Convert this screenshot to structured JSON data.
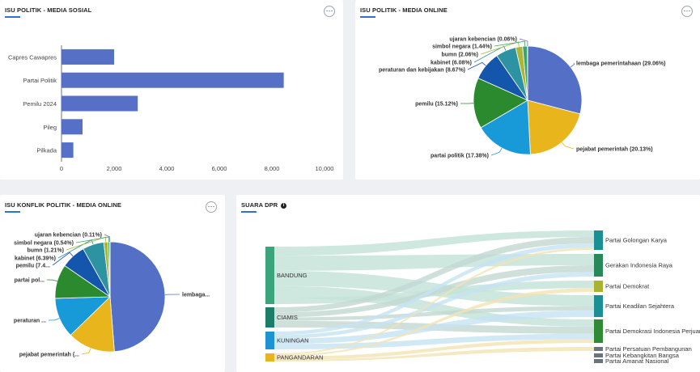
{
  "panels": {
    "sosial": {
      "title": "ISU POLITIK - MEDIA SOSIAL",
      "more": "⋯"
    },
    "online": {
      "title": "ISU POLITIK - MEDIA ONLINE",
      "more": "⋯"
    },
    "konflik": {
      "title": "ISU KONFLIK POLITIK - MEDIA ONLINE",
      "more": "⋯"
    },
    "dpr": {
      "title": "SUARA DPR",
      "info": "i"
    }
  },
  "chart_data": [
    {
      "type": "bar",
      "orientation": "horizontal",
      "title": "ISU POLITIK - MEDIA SOSIAL",
      "categories": [
        "Capres Cawapres",
        "Partai Politik",
        "Pemilu 2024",
        "Pileg",
        "Pilkada"
      ],
      "values": [
        2000,
        8450,
        2900,
        800,
        450
      ],
      "xlim": [
        0,
        10000
      ],
      "xticks": [
        "0",
        "2,000",
        "4,000",
        "6,000",
        "8,000",
        "10,000"
      ],
      "grid": false,
      "color": "#5670c8"
    },
    {
      "type": "pie",
      "title": "ISU POLITIK - MEDIA ONLINE",
      "slices": [
        {
          "label": "lembaga pemerintahaan (29.06%)",
          "value": 29.06,
          "color": "#5470c6"
        },
        {
          "label": "pejabat pemerintah (20.13%)",
          "value": 20.13,
          "color": "#e8b51c"
        },
        {
          "label": "partai politik (17.38%)",
          "value": 17.38,
          "color": "#189ad8"
        },
        {
          "label": "pemilu (15.12%)",
          "value": 15.12,
          "color": "#2b8a2e"
        },
        {
          "label": "peraturan dan kebijakan (8.67%)",
          "value": 8.67,
          "color": "#1556ad"
        },
        {
          "label": "kabinet (6.08%)",
          "value": 6.08,
          "color": "#2d93a2"
        },
        {
          "label": "bumn (2.06%)",
          "value": 2.06,
          "color": "#acb534"
        },
        {
          "label": "simbol negara (1.44%)",
          "value": 1.44,
          "color": "#3ca46c"
        },
        {
          "label": "ujaran kebencian (0.06%)",
          "value": 0.06,
          "color": "#8a5cc2"
        }
      ]
    },
    {
      "type": "pie",
      "title": "ISU KONFLIK POLITIK - MEDIA ONLINE",
      "slices": [
        {
          "label": "lembaga...",
          "value": 49.5,
          "color": "#5470c6"
        },
        {
          "label": "pejabat pemerintah (...",
          "value": 14.2,
          "color": "#e8b51c"
        },
        {
          "label": "peraturan ...",
          "value": 12.0,
          "color": "#189ad8"
        },
        {
          "label": "partai pol...",
          "value": 10.2,
          "color": "#2b8a2e"
        },
        {
          "label": "pemilu (7.4...",
          "value": 7.4,
          "color": "#1556ad"
        },
        {
          "label": "kabinet (6.39%)",
          "value": 6.39,
          "color": "#2d93a2"
        },
        {
          "label": "bumn (1.21%)",
          "value": 1.21,
          "color": "#acb534"
        },
        {
          "label": "simbol negara (0.54%)",
          "value": 0.54,
          "color": "#3ca46c"
        },
        {
          "label": "ujaran kebencian (0.11%)",
          "value": 0.11,
          "color": "#8a5cc2"
        }
      ]
    },
    {
      "type": "sankey",
      "title": "SUARA DPR",
      "sources": [
        {
          "name": "BANDUNG",
          "color": "#3ca47c"
        },
        {
          "name": "CIAMIS",
          "color": "#1e7d68"
        },
        {
          "name": "KUNINGAN",
          "color": "#1d93d3"
        },
        {
          "name": "PANGANDARAN",
          "color": "#e8b51c"
        }
      ],
      "targets": [
        {
          "name": "Partai Golongan Karya",
          "color": "#1b8f94"
        },
        {
          "name": "Gerakan Indonesia Raya",
          "color": "#27895a"
        },
        {
          "name": "Partai Demokrat",
          "color": "#a8b330"
        },
        {
          "name": "Partai Keadilan Sejahtera",
          "color": "#1b8f94"
        },
        {
          "name": "Partai Demokrasi Indonesia Perjuangan",
          "color": "#2f8a36"
        },
        {
          "name": "Partai Persatuan Pembangunan",
          "color": "#687480"
        },
        {
          "name": "Partai Kebangkitan Bangsa",
          "color": "#687480"
        },
        {
          "name": "Partai Amanat Nasional",
          "color": "#687480"
        }
      ]
    }
  ]
}
